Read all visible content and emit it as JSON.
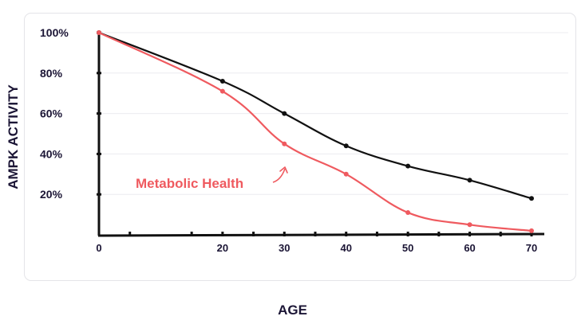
{
  "chart_data": {
    "type": "line",
    "title": "",
    "xlabel": "AGE",
    "ylabel": "AMPK ACTIVITY",
    "x": [
      0,
      20,
      30,
      40,
      50,
      60,
      70
    ],
    "x_ticks": [
      0,
      20,
      30,
      40,
      50,
      60,
      70
    ],
    "y_ticks": [
      {
        "value": 20,
        "label": "20%"
      },
      {
        "value": 40,
        "label": "40%"
      },
      {
        "value": 60,
        "label": "60%"
      },
      {
        "value": 80,
        "label": "80%"
      },
      {
        "value": 100,
        "label": "100%"
      }
    ],
    "xlim": [
      0,
      70
    ],
    "ylim": [
      0,
      100
    ],
    "grid": true,
    "series": [
      {
        "name": "",
        "color": "#111111",
        "values": [
          100,
          76,
          60,
          44,
          34,
          27,
          18
        ]
      },
      {
        "name": "Metabolic Health",
        "color": "#ef5a5f",
        "values": [
          100,
          71,
          45,
          30,
          11,
          5,
          2
        ]
      }
    ]
  }
}
